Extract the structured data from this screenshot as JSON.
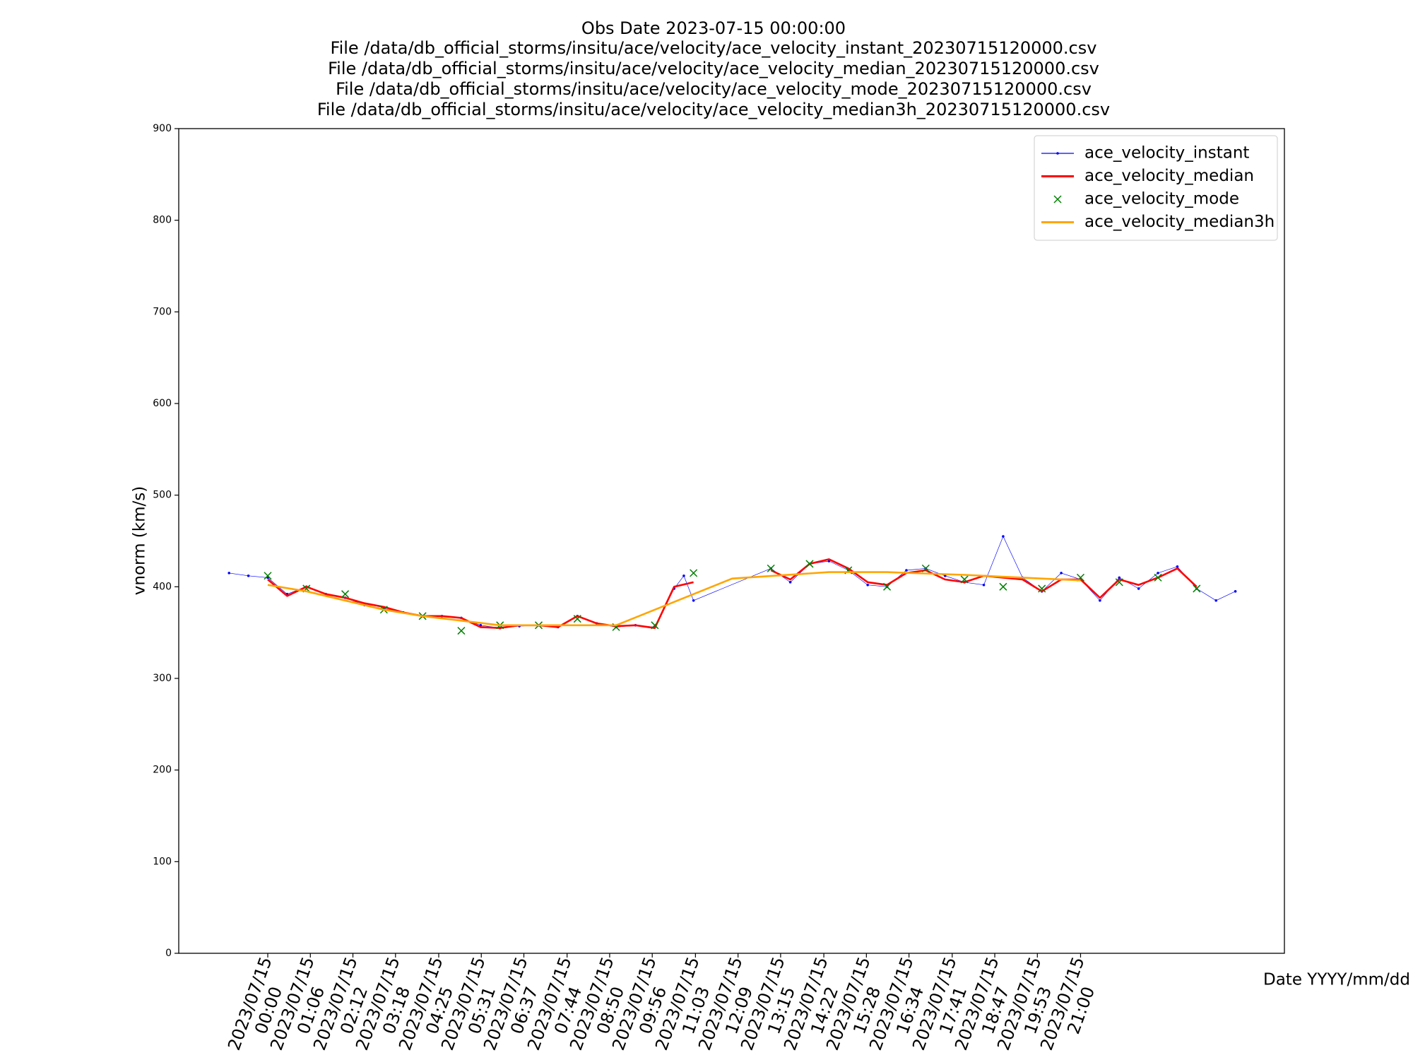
{
  "chart_data": {
    "type": "line",
    "title": [
      "Obs Date 2023-07-15 00:00:00",
      "File /data/db_official_storms/insitu/ace/velocity/ace_velocity_instant_20230715120000.csv",
      "File /data/db_official_storms/insitu/ace/velocity/ace_velocity_median_20230715120000.csv",
      "File /data/db_official_storms/insitu/ace/velocity/ace_velocity_mode_20230715120000.csv",
      "File /data/db_official_storms/insitu/ace/velocity/ace_velocity_median3h_20230715120000.csv"
    ],
    "x_label": "Date YYYY/mm/dd",
    "y_label": "vnorm (km/s)",
    "xlim": [
      "2023/07/14 21:42",
      "2023/07/16 02:16"
    ],
    "xticks": [
      {
        "value": "2023/07/15 00:00",
        "label": "2023/07/15\n00:00"
      },
      {
        "value": "2023/07/15 01:06",
        "label": "2023/07/15\n01:06"
      },
      {
        "value": "2023/07/15 02:12",
        "label": "2023/07/15\n02:12"
      },
      {
        "value": "2023/07/15 03:18",
        "label": "2023/07/15\n03:18"
      },
      {
        "value": "2023/07/15 04:25",
        "label": "2023/07/15\n04:25"
      },
      {
        "value": "2023/07/15 05:31",
        "label": "2023/07/15\n05:31"
      },
      {
        "value": "2023/07/15 06:37",
        "label": "2023/07/15\n06:37"
      },
      {
        "value": "2023/07/15 07:44",
        "label": "2023/07/15\n07:44"
      },
      {
        "value": "2023/07/15 08:50",
        "label": "2023/07/15\n08:50"
      },
      {
        "value": "2023/07/15 09:56",
        "label": "2023/07/15\n09:56"
      },
      {
        "value": "2023/07/15 11:03",
        "label": "2023/07/15\n11:03"
      },
      {
        "value": "2023/07/15 12:09",
        "label": "2023/07/15\n12:09"
      },
      {
        "value": "2023/07/15 13:15",
        "label": "2023/07/15\n13:15"
      },
      {
        "value": "2023/07/15 14:22",
        "label": "2023/07/15\n14:22"
      },
      {
        "value": "2023/07/15 15:28",
        "label": "2023/07/15\n15:28"
      },
      {
        "value": "2023/07/15 16:34",
        "label": "2023/07/15\n16:34"
      },
      {
        "value": "2023/07/15 17:41",
        "label": "2023/07/15\n17:41"
      },
      {
        "value": "2023/07/15 18:47",
        "label": "2023/07/15\n18:47"
      },
      {
        "value": "2023/07/15 19:53",
        "label": "2023/07/15\n19:53"
      },
      {
        "value": "2023/07/15 21:00",
        "label": "2023/07/15\n21:00"
      }
    ],
    "ylim": [
      0,
      900
    ],
    "yticks": [
      0,
      100,
      200,
      300,
      400,
      500,
      600,
      700,
      800,
      900
    ],
    "legend": "upper right",
    "grid": false,
    "series": [
      {
        "name": "ace_velocity_instant",
        "color": "#0000ff",
        "linestyle": "-",
        "linewidth": 0.5,
        "marker": ".",
        "x": [
          "2023/07/14 23:00",
          "2023/07/14 23:30",
          "2023/07/15 00:00",
          "2023/07/15 00:30",
          "2023/07/15 01:00",
          "2023/07/15 01:30",
          "2023/07/15 02:00",
          "2023/07/15 02:30",
          "2023/07/15 03:00",
          "2023/07/15 03:30",
          "2023/07/15 04:00",
          "2023/07/15 04:30",
          "2023/07/15 05:00",
          "2023/07/15 05:30",
          "2023/07/15 06:00",
          "2023/07/15 06:30",
          "2023/07/15 07:00",
          "2023/07/15 07:30",
          "2023/07/15 08:00",
          "2023/07/15 08:30",
          "2023/07/15 09:00",
          "2023/07/15 09:30",
          "2023/07/15 10:00",
          "2023/07/15 10:30",
          "2023/07/15 10:45",
          "2023/07/15 11:00",
          "2023/07/15 13:00",
          "2023/07/15 13:30",
          "2023/07/15 14:00",
          "2023/07/15 14:30",
          "2023/07/15 15:00",
          "2023/07/15 15:30",
          "2023/07/15 16:00",
          "2023/07/15 16:30",
          "2023/07/15 17:00",
          "2023/07/15 17:30",
          "2023/07/15 18:00",
          "2023/07/15 18:30",
          "2023/07/15 19:00",
          "2023/07/15 19:30",
          "2023/07/15 20:00",
          "2023/07/15 20:30",
          "2023/07/15 21:00",
          "2023/07/15 21:30",
          "2023/07/15 22:00",
          "2023/07/15 22:30",
          "2023/07/15 23:00",
          "2023/07/15 23:30",
          "2023/07/16 00:00",
          "2023/07/16 00:30",
          "2023/07/16 01:00"
        ],
        "values": [
          415,
          412,
          410,
          392,
          400,
          392,
          388,
          380,
          376,
          372,
          368,
          368,
          366,
          358,
          355,
          357,
          358,
          356,
          368,
          360,
          356,
          358,
          356,
          398,
          412,
          385,
          420,
          405,
          425,
          428,
          418,
          402,
          400,
          418,
          420,
          412,
          405,
          402,
          455,
          410,
          395,
          415,
          408,
          385,
          410,
          398,
          415,
          422,
          398,
          385,
          395
        ]
      },
      {
        "name": "ace_velocity_median",
        "color": "#ff0000",
        "linestyle": "-",
        "linewidth": 2,
        "marker": "none",
        "x": [
          "2023/07/15 00:00",
          "2023/07/15 00:30",
          "2023/07/15 01:00",
          "2023/07/15 01:30",
          "2023/07/15 02:00",
          "2023/07/15 02:30",
          "2023/07/15 03:00",
          "2023/07/15 03:30",
          "2023/07/15 04:00",
          "2023/07/15 04:30",
          "2023/07/15 05:00",
          "2023/07/15 05:30",
          "2023/07/15 06:00",
          "2023/07/15 06:30",
          "2023/07/15 07:00",
          "2023/07/15 07:30",
          "2023/07/15 08:00",
          "2023/07/15 08:30",
          "2023/07/15 09:00",
          "2023/07/15 09:30",
          "2023/07/15 10:00",
          "2023/07/15 10:30",
          "2023/07/15 11:00",
          "2023/07/15 12:00",
          "2023/07/15 13:00",
          "2023/07/15 13:30",
          "2023/07/15 14:00",
          "2023/07/15 14:30",
          "2023/07/15 15:00",
          "2023/07/15 15:30",
          "2023/07/15 16:00",
          "2023/07/15 16:30",
          "2023/07/15 17:00",
          "2023/07/15 17:30",
          "2023/07/15 18:00",
          "2023/07/15 18:30",
          "2023/07/15 19:00",
          "2023/07/15 19:30",
          "2023/07/15 20:00",
          "2023/07/15 20:30",
          "2023/07/15 21:00",
          "2023/07/15 21:30",
          "2023/07/15 22:00",
          "2023/07/15 22:30",
          "2023/07/15 23:00",
          "2023/07/15 23:30",
          "2023/07/16 00:00"
        ],
        "values": [
          408,
          390,
          400,
          392,
          388,
          382,
          378,
          372,
          368,
          368,
          366,
          356,
          355,
          358,
          358,
          356,
          368,
          360,
          357,
          358,
          355,
          400,
          405,
          null,
          418,
          408,
          425,
          430,
          420,
          405,
          402,
          415,
          418,
          408,
          405,
          412,
          410,
          408,
          395,
          408,
          408,
          388,
          408,
          402,
          410,
          420,
          400
        ]
      },
      {
        "name": "ace_velocity_mode",
        "color": "#008000",
        "linestyle": "none",
        "linewidth": 0,
        "marker": "x",
        "x": [
          "2023/07/15 00:00",
          "2023/07/15 01:00",
          "2023/07/15 02:00",
          "2023/07/15 03:00",
          "2023/07/15 04:00",
          "2023/07/15 05:00",
          "2023/07/15 06:00",
          "2023/07/15 07:00",
          "2023/07/15 08:00",
          "2023/07/15 09:00",
          "2023/07/15 10:00",
          "2023/07/15 11:00",
          "2023/07/15 13:00",
          "2023/07/15 14:00",
          "2023/07/15 15:00",
          "2023/07/15 16:00",
          "2023/07/15 17:00",
          "2023/07/15 18:00",
          "2023/07/15 19:00",
          "2023/07/15 20:00",
          "2023/07/15 21:00",
          "2023/07/15 22:00",
          "2023/07/15 23:00",
          "2023/07/16 00:00"
        ],
        "values": [
          412,
          398,
          392,
          375,
          368,
          352,
          358,
          358,
          365,
          356,
          358,
          415,
          420,
          425,
          418,
          400,
          420,
          408,
          400,
          398,
          410,
          405,
          410,
          398
        ]
      },
      {
        "name": "ace_velocity_median3h",
        "color": "#ffa500",
        "linestyle": "-",
        "linewidth": 2,
        "marker": "none",
        "x": [
          "2023/07/15 00:00",
          "2023/07/15 01:00",
          "2023/07/15 02:00",
          "2023/07/15 03:00",
          "2023/07/15 04:00",
          "2023/07/15 05:00",
          "2023/07/15 06:00",
          "2023/07/15 07:00",
          "2023/07/15 08:00",
          "2023/07/15 09:00",
          "2023/07/15 12:00",
          "2023/07/15 14:30",
          "2023/07/15 16:00",
          "2023/07/15 18:00",
          "2023/07/15 19:30",
          "2023/07/15 21:00"
        ],
        "values": [
          402,
          395,
          385,
          375,
          368,
          363,
          358,
          358,
          358,
          358,
          409,
          416,
          416,
          413,
          410,
          407
        ]
      }
    ]
  }
}
